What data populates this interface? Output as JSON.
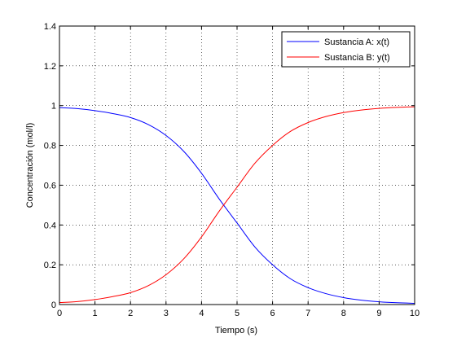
{
  "chart_data": {
    "type": "line",
    "title": "",
    "xlabel": "Tiempo (s)",
    "ylabel": "Concentración (mol/l)",
    "xlim": [
      0,
      10
    ],
    "ylim": [
      0,
      1.4
    ],
    "xticks": [
      0,
      1,
      2,
      3,
      4,
      5,
      6,
      7,
      8,
      9,
      10
    ],
    "yticks": [
      0,
      0.2,
      0.4,
      0.6,
      0.8,
      1,
      1.2,
      1.4
    ],
    "grid": true,
    "legend_position": "top-right",
    "x": [
      0,
      0.5,
      1,
      1.5,
      2,
      2.5,
      3,
      3.5,
      4,
      4.5,
      5,
      5.5,
      6,
      6.5,
      7,
      7.5,
      8,
      8.5,
      9,
      9.5,
      10
    ],
    "series": [
      {
        "name": "Sustancia A: x(t)",
        "color": "#0000ff",
        "values": [
          0.99,
          0.985,
          0.975,
          0.96,
          0.94,
          0.905,
          0.85,
          0.77,
          0.66,
          0.53,
          0.41,
          0.29,
          0.2,
          0.13,
          0.085,
          0.055,
          0.035,
          0.022,
          0.014,
          0.009,
          0.006
        ]
      },
      {
        "name": "Sustancia B: y(t)",
        "color": "#ff0000",
        "values": [
          0.01,
          0.015,
          0.025,
          0.04,
          0.06,
          0.095,
          0.15,
          0.23,
          0.34,
          0.47,
          0.59,
          0.71,
          0.8,
          0.87,
          0.915,
          0.945,
          0.965,
          0.978,
          0.986,
          0.991,
          0.994
        ]
      }
    ]
  }
}
